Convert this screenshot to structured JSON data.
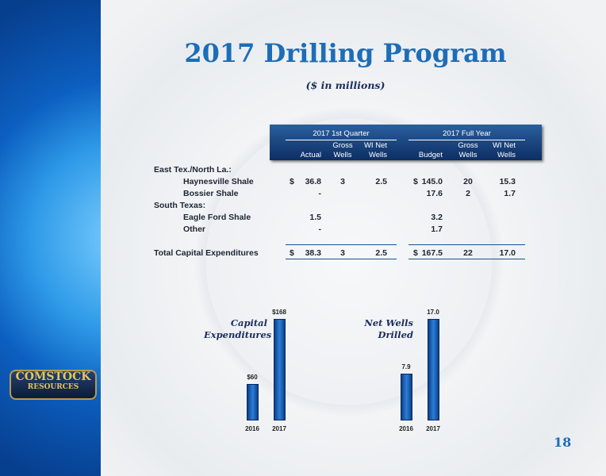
{
  "title": "2017 Drilling Program",
  "subtitle": "($ in millions)",
  "table": {
    "groups": [
      "2017 1st Quarter",
      "2017 Full Year"
    ],
    "header_rows": [
      [
        null,
        "Gross",
        "WI Net",
        null,
        "Gross",
        "WI Net"
      ],
      [
        "Actual",
        "Wells",
        "Wells",
        "Budget",
        "Wells",
        "Wells"
      ]
    ],
    "rows": [
      {
        "label": "East Tex./North La.:",
        "cells": []
      },
      {
        "label": "Haynesville Shale",
        "cells": [
          "$",
          "36.8",
          "3",
          "2.5",
          "$",
          "145.0",
          "20",
          "15.3"
        ]
      },
      {
        "label": "Bossier Shale",
        "cells": [
          null,
          "-",
          null,
          null,
          null,
          "17.6",
          "2",
          "1.7"
        ]
      },
      {
        "label": "South Texas:",
        "cells": []
      },
      {
        "label": "Eagle Ford Shale",
        "cells": [
          null,
          "1.5",
          null,
          null,
          null,
          "3.2",
          null,
          null
        ]
      },
      {
        "label": "Other",
        "cells": [
          null,
          "-",
          null,
          null,
          null,
          "1.7",
          null,
          null
        ]
      },
      {
        "label": "Total Capital Expenditures",
        "cells": [
          "$",
          "38.3",
          "3",
          "2.5",
          "$",
          "167.5",
          "22",
          "17.0"
        ]
      }
    ]
  },
  "chart_data": [
    {
      "type": "bar",
      "title": "Capital Expenditures",
      "categories": [
        "2016",
        "2017"
      ],
      "values": [
        60,
        168
      ],
      "value_labels": [
        "$60",
        "$168"
      ],
      "color": "#1a63b8"
    },
    {
      "type": "bar",
      "title": "Net Wells Drilled",
      "categories": [
        "2016",
        "2017"
      ],
      "values": [
        7.9,
        17
      ],
      "value_labels": [
        "7.9",
        "17.0"
      ],
      "color": "#1a63b8"
    }
  ],
  "logo": {
    "line1": "COMSTOCK",
    "line2": "RESOURCES"
  },
  "page_number": "18"
}
